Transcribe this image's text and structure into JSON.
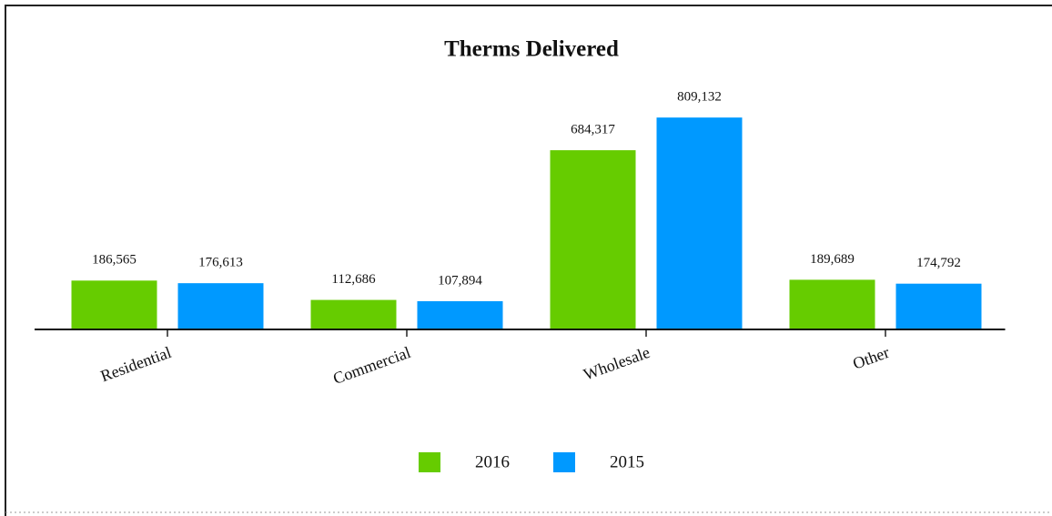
{
  "chart_data": {
    "type": "bar",
    "title": "Therms Delivered",
    "categories": [
      "Residential",
      "Commercial",
      "Wholesale",
      "Other"
    ],
    "series": [
      {
        "name": "2016",
        "color": "#66cc00",
        "values": [
          186565,
          112686,
          684317,
          189689
        ],
        "value_labels": [
          "186,565",
          "112,686",
          "684,317",
          "189,689"
        ]
      },
      {
        "name": "2015",
        "color": "#0099ff",
        "values": [
          176613,
          107894,
          809132,
          174792
        ],
        "value_labels": [
          "176,613",
          "107,894",
          "809,132",
          "174,792"
        ]
      }
    ],
    "ylim": [
      0,
      900000
    ],
    "grid": false,
    "legend": "bottom"
  }
}
